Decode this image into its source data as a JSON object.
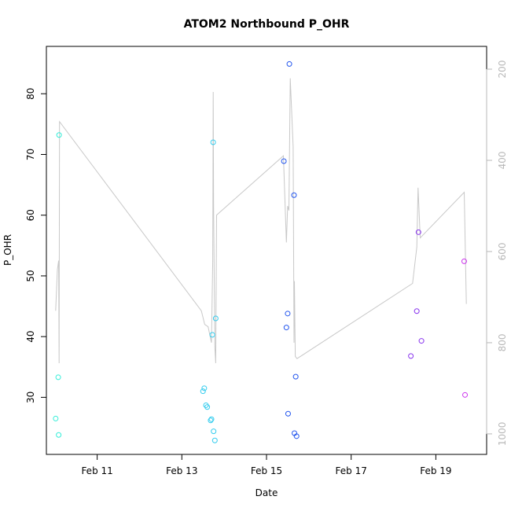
{
  "chart_data": {
    "type": "scatter",
    "title": "ATOM2 Northbound P_OHR",
    "xlabel": "Date",
    "ylabel": "P_OHR",
    "x_ticks": [
      {
        "value": 11,
        "label": "Feb 11"
      },
      {
        "value": 13,
        "label": "Feb 13"
      },
      {
        "value": 15,
        "label": "Feb 15"
      },
      {
        "value": 17,
        "label": "Feb 17"
      },
      {
        "value": 19,
        "label": "Feb 19"
      }
    ],
    "y_ticks": [
      30,
      40,
      50,
      60,
      70,
      80
    ],
    "y2_ticks": [
      200,
      400,
      600,
      800,
      1000
    ],
    "xlim": [
      9.8,
      20.2
    ],
    "ylim": [
      20.6,
      87.8
    ],
    "y2lim": [
      1045,
      150
    ],
    "grid": false,
    "points": [
      {
        "x": 10.02,
        "y": 26.5,
        "color": "#33eed8"
      },
      {
        "x": 10.08,
        "y": 33.3,
        "color": "#33eed8"
      },
      {
        "x": 10.09,
        "y": 23.8,
        "color": "#33eed8"
      },
      {
        "x": 10.1,
        "y": 73.2,
        "color": "#33eed8"
      },
      {
        "x": 13.5,
        "y": 31.0,
        "color": "#33ccee"
      },
      {
        "x": 13.53,
        "y": 31.5,
        "color": "#33ccee"
      },
      {
        "x": 13.57,
        "y": 28.7,
        "color": "#33ccee"
      },
      {
        "x": 13.6,
        "y": 28.4,
        "color": "#33ccee"
      },
      {
        "x": 13.68,
        "y": 26.2,
        "color": "#33ccee"
      },
      {
        "x": 13.7,
        "y": 26.4,
        "color": "#33ccee"
      },
      {
        "x": 13.72,
        "y": 40.3,
        "color": "#33ccee"
      },
      {
        "x": 13.74,
        "y": 72.0,
        "color": "#33ccee"
      },
      {
        "x": 13.75,
        "y": 24.4,
        "color": "#33ccee"
      },
      {
        "x": 13.78,
        "y": 22.9,
        "color": "#33ccee"
      },
      {
        "x": 13.8,
        "y": 43.0,
        "color": "#33ccee"
      },
      {
        "x": 15.41,
        "y": 68.9,
        "color": "#2255ee"
      },
      {
        "x": 15.47,
        "y": 41.5,
        "color": "#2255ee"
      },
      {
        "x": 15.5,
        "y": 43.8,
        "color": "#2255ee"
      },
      {
        "x": 15.51,
        "y": 27.3,
        "color": "#2255ee"
      },
      {
        "x": 15.54,
        "y": 84.9,
        "color": "#2255ee"
      },
      {
        "x": 15.65,
        "y": 63.3,
        "color": "#2255ee"
      },
      {
        "x": 15.66,
        "y": 24.1,
        "color": "#2255ee"
      },
      {
        "x": 15.69,
        "y": 33.4,
        "color": "#2255ee"
      },
      {
        "x": 15.71,
        "y": 23.6,
        "color": "#2255ee"
      },
      {
        "x": 18.41,
        "y": 36.8,
        "color": "#8833ee"
      },
      {
        "x": 18.55,
        "y": 44.2,
        "color": "#8833ee"
      },
      {
        "x": 18.59,
        "y": 57.2,
        "color": "#8833ee"
      },
      {
        "x": 18.66,
        "y": 39.3,
        "color": "#8833ee"
      },
      {
        "x": 19.67,
        "y": 52.4,
        "color": "#cc33ee"
      },
      {
        "x": 19.69,
        "y": 30.4,
        "color": "#cc33ee"
      }
    ],
    "line_series": {
      "axis": "right",
      "color": "#c8c8c8",
      "points": [
        [
          10.02,
          730
        ],
        [
          10.06,
          640
        ],
        [
          10.09,
          620
        ],
        [
          10.1,
          845
        ],
        [
          10.11,
          315
        ],
        [
          13.46,
          730
        ],
        [
          13.54,
          760
        ],
        [
          13.62,
          765
        ],
        [
          13.7,
          800
        ],
        [
          13.73,
          620
        ],
        [
          13.74,
          250
        ],
        [
          13.75,
          500
        ],
        [
          13.78,
          810
        ],
        [
          13.8,
          845
        ],
        [
          13.82,
          520
        ],
        [
          15.4,
          390
        ],
        [
          15.47,
          580
        ],
        [
          15.5,
          500
        ],
        [
          15.53,
          510
        ],
        [
          15.56,
          220
        ],
        [
          15.63,
          370
        ],
        [
          15.65,
          800
        ],
        [
          15.66,
          665
        ],
        [
          15.68,
          830
        ],
        [
          15.72,
          835
        ],
        [
          18.45,
          670
        ],
        [
          18.55,
          590
        ],
        [
          18.58,
          460
        ],
        [
          18.63,
          570
        ],
        [
          19.67,
          470
        ],
        [
          19.72,
          715
        ]
      ]
    }
  }
}
